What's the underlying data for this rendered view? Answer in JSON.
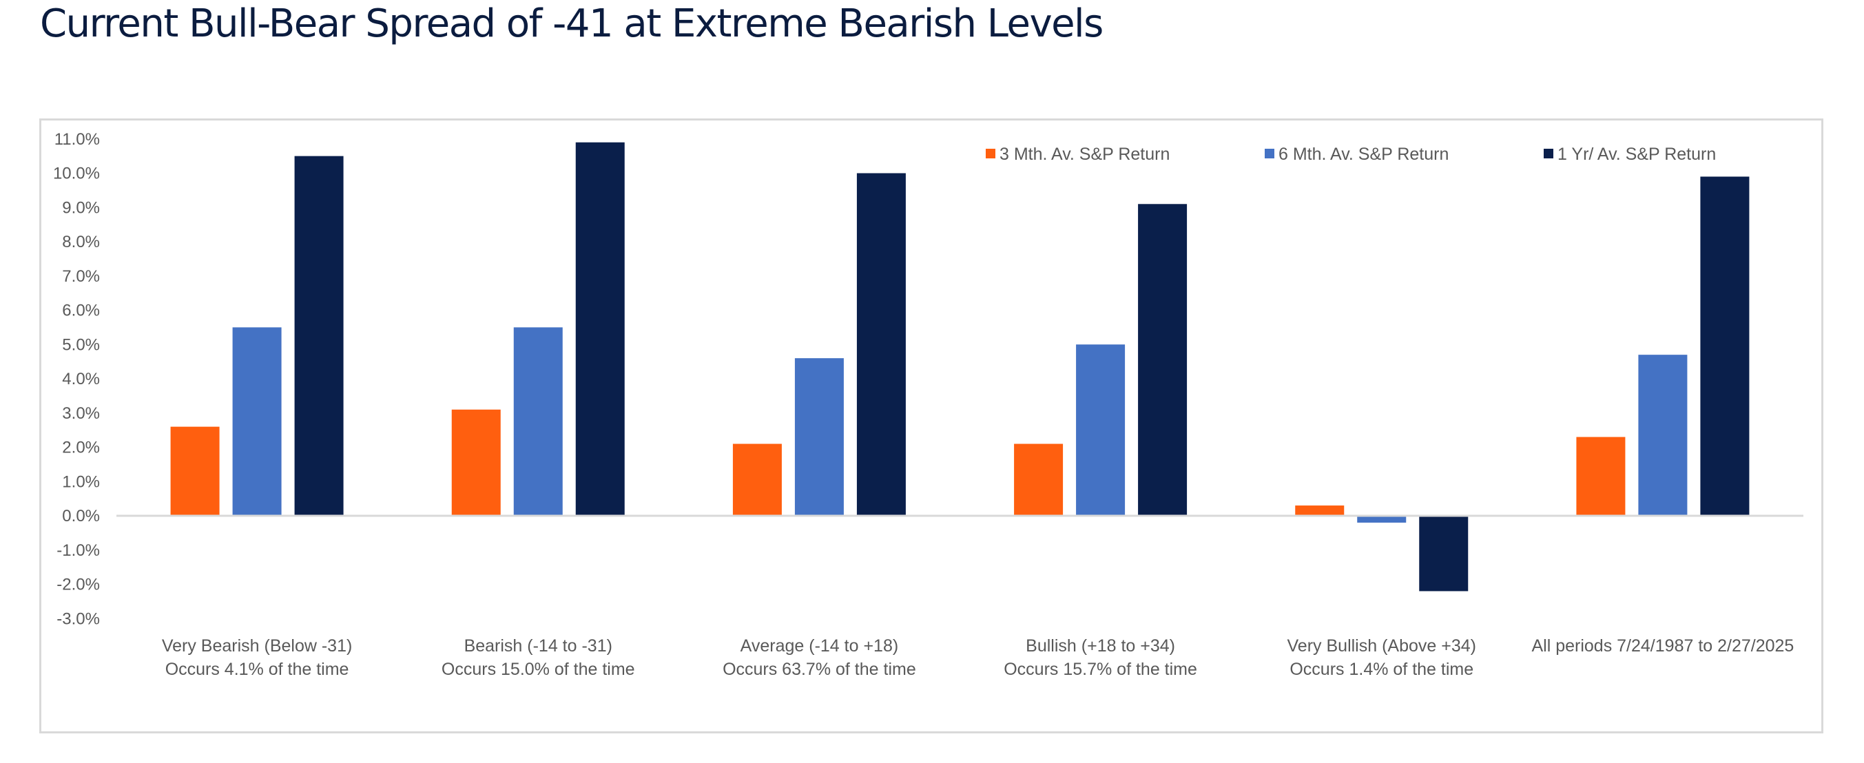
{
  "title": "Current Bull-Bear Spread of -41 at Extreme Bearish Levels",
  "chart_data": {
    "type": "bar",
    "title": "Current Bull-Bear Spread of -41 at Extreme Bearish Levels",
    "xlabel": "",
    "ylabel": "",
    "ylim": [
      -3.0,
      11.0
    ],
    "y_ticks": [
      "11.0%",
      "10.0%",
      "9.0%",
      "8.0%",
      "7.0%",
      "6.0%",
      "5.0%",
      "4.0%",
      "3.0%",
      "2.0%",
      "1.0%",
      "0.0%",
      "-1.0%",
      "-2.0%",
      "-3.0%"
    ],
    "y_tick_values": [
      11,
      10,
      9,
      8,
      7,
      6,
      5,
      4,
      3,
      2,
      1,
      0,
      -1,
      -2,
      -3
    ],
    "grid": false,
    "legend_position": "top-right",
    "categories": [
      [
        "Very Bearish (Below -31)",
        "Occurs 4.1% of the time"
      ],
      [
        "Bearish (-14 to -31)",
        "Occurs 15.0% of the time"
      ],
      [
        "Average (-14 to +18)",
        "Occurs 63.7% of the time"
      ],
      [
        "Bullish (+18 to +34)",
        "Occurs 15.7% of the time"
      ],
      [
        "Very Bullish (Above +34)",
        "Occurs 1.4% of the time"
      ],
      [
        "All periods 7/24/1987 to 2/27/2025",
        ""
      ]
    ],
    "series": [
      {
        "name": "3 Mth. Av. S&P Return",
        "color": "#ff5f0f",
        "values": [
          2.6,
          3.1,
          2.1,
          2.1,
          0.3,
          2.3
        ]
      },
      {
        "name": "6 Mth. Av. S&P Return",
        "color": "#4472c4",
        "values": [
          5.5,
          5.5,
          4.6,
          5.0,
          -0.2,
          4.7
        ]
      },
      {
        "name": "1 Yr/ Av. S&P Return",
        "color": "#0a1f4b",
        "values": [
          10.5,
          10.9,
          10.0,
          9.1,
          -2.2,
          9.9
        ]
      }
    ],
    "units": "%"
  }
}
